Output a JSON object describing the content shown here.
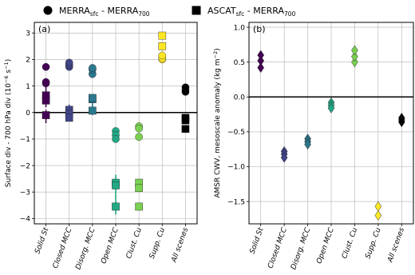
{
  "legend": [
    {
      "name": "MERRA_sfc - MERRA_700",
      "marker": "circle",
      "label_main": "MERRA",
      "label_sub1": "sfc",
      "label_mid": " - MERRA",
      "label_sub2": "700"
    },
    {
      "name": "ASCAT_sfc - MERRA_700",
      "marker": "square",
      "label_main": "ASCAT",
      "label_sub1": "sfc",
      "label_mid": " - MERRA",
      "label_sub2": "700"
    }
  ],
  "colors": {
    "Solid St": "#440154",
    "Closed MCC": "#414487",
    "Disorg. MCC": "#2a788e",
    "Open MCC": "#22a884",
    "Clust. Cu": "#7ad151",
    "Supp. Cu": "#fde725",
    "All scenes": "#000000"
  },
  "chart_data": [
    {
      "type": "scatter",
      "panel_label": "(a)",
      "ylabel": "Surface div - 700 hPa div (10^-6 s^-1)",
      "ylabel_main": "Surface div - 700 hPa div (10",
      "ylabel_sup": "−6",
      "ylabel_tail": " s",
      "ylabel_sup2": "−1",
      "ylabel_end": ")",
      "ylim": [
        -4.2,
        3.4
      ],
      "yticks": [
        -4,
        -3,
        -2,
        -1,
        0,
        1,
        2,
        3
      ],
      "categories": [
        "Solid St",
        "Closed MCC",
        "Disorg. MCC",
        "Open MCC",
        "Clust. Cu",
        "Supp. Cu",
        "All scenes"
      ],
      "grid": true,
      "series": [
        {
          "name": "MERRA_sfc - MERRA_700",
          "marker": "circle",
          "points": [
            {
              "category": "Solid St",
              "values": [
                1.1,
                1.15,
                1.72
              ]
            },
            {
              "category": "Closed MCC",
              "values": [
                1.72,
                1.8,
                1.88
              ]
            },
            {
              "category": "Disorg. MCC",
              "values": [
                1.45,
                1.62,
                1.68
              ]
            },
            {
              "category": "Open MCC",
              "values": [
                -0.7,
                -0.85,
                -1.0
              ]
            },
            {
              "category": "Clust. Cu",
              "values": [
                -0.52,
                -0.6,
                -0.92
              ]
            },
            {
              "category": "Supp. Cu",
              "values": [
                2.0,
                2.05,
                2.15
              ]
            },
            {
              "category": "All scenes",
              "values": [
                0.78,
                0.85,
                0.95
              ]
            }
          ]
        },
        {
          "name": "ASCAT_sfc - MERRA_700",
          "marker": "square",
          "points": [
            {
              "category": "Solid St",
              "values": [
                0.45,
                0.65,
                -0.1
              ],
              "err": [
                [
                  0.2,
                  1.0
                ],
                [
                  -0.4,
                  0.1
                ]
              ]
            },
            {
              "category": "Closed MCC",
              "values": [
                0.1,
                -0.05,
                -0.2
              ],
              "err": [
                [
                  -0.3,
                  0.3
                ]
              ]
            },
            {
              "category": "Disorg. MCC",
              "values": [
                0.5,
                0.55,
                0.07
              ],
              "err": [
                [
                  -0.1,
                  0.65
                ]
              ]
            },
            {
              "category": "Open MCC",
              "values": [
                -2.65,
                -2.75,
                -3.55
              ],
              "err": [
                [
                  -3.85,
                  -2.35
                ]
              ]
            },
            {
              "category": "Clust. Cu",
              "values": [
                -2.65,
                -2.85,
                -3.55
              ]
            },
            {
              "category": "Supp. Cu",
              "values": [
                2.9,
                2.5
              ]
            },
            {
              "category": "All scenes",
              "values": [
                -0.2,
                -0.3,
                -0.62
              ]
            }
          ]
        }
      ]
    },
    {
      "type": "scatter",
      "panel_label": "(b)",
      "ylabel": "AMSR CWV, mesoscale anomaly (kg m^-2)",
      "ylabel_main": "AMSR CWV, mesoscale anomaly (kg m",
      "ylabel_sup": "−2",
      "ylabel_end": ")",
      "ylim": [
        -1.82,
        1.07
      ],
      "yticks": [
        -1.5,
        -1.0,
        -0.5,
        0.0,
        0.5,
        1.0
      ],
      "ytick_labels": [
        "−1.5",
        "−1.0",
        "−0.5",
        "0.0",
        "0.5",
        "1.0"
      ],
      "categories": [
        "Solid St",
        "Closed MCC",
        "Disorg. MCC",
        "Open MCC",
        "Clust. Cu",
        "Supp. Cu",
        "All scenes"
      ],
      "grid": true,
      "series": [
        {
          "name": "AMSR CWV anomaly",
          "marker": "diamond",
          "points": [
            {
              "category": "Solid St",
              "values": [
                0.42,
                0.52,
                0.6
              ]
            },
            {
              "category": "Closed MCC",
              "values": [
                -0.78,
                -0.82,
                -0.87
              ]
            },
            {
              "category": "Disorg. MCC",
              "values": [
                -0.6,
                -0.64,
                -0.68
              ]
            },
            {
              "category": "Open MCC",
              "values": [
                -0.08,
                -0.12,
                -0.16
              ]
            },
            {
              "category": "Clust. Cu",
              "values": [
                0.5,
                0.58,
                0.67
              ]
            },
            {
              "category": "Supp. Cu",
              "values": [
                -1.57,
                -1.7
              ]
            },
            {
              "category": "All scenes",
              "values": [
                -0.3,
                -0.33,
                -0.36
              ]
            }
          ]
        }
      ]
    }
  ]
}
